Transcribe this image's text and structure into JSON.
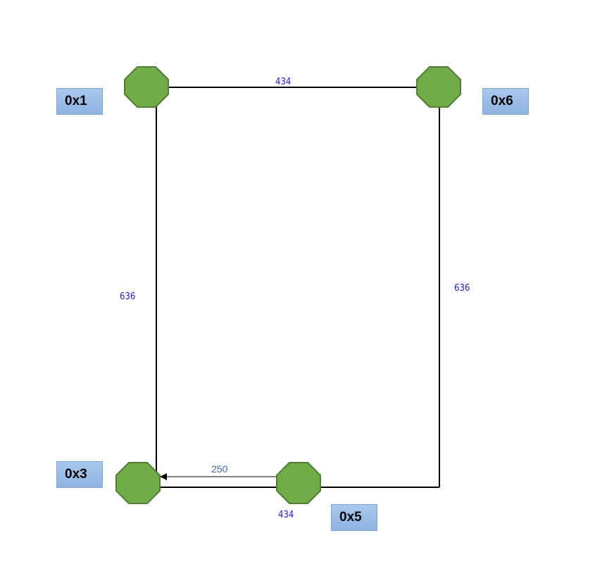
{
  "nodes": [
    {
      "id": "n1",
      "label": "0x1"
    },
    {
      "id": "n6",
      "label": "0x6"
    },
    {
      "id": "n3",
      "label": "0x3"
    },
    {
      "id": "n5",
      "label": "0x5"
    }
  ],
  "edges": [
    {
      "id": "top",
      "label": "434"
    },
    {
      "id": "left",
      "label": "636"
    },
    {
      "id": "right",
      "label": "636"
    },
    {
      "id": "bottom",
      "label": "434"
    },
    {
      "id": "arrow",
      "label": "250"
    }
  ],
  "colors": {
    "node_fill": "#70ad47",
    "node_stroke": "#507e32",
    "label_fill": "#8db4e2",
    "edge_label": "#1a1aff",
    "line": "#000000"
  }
}
